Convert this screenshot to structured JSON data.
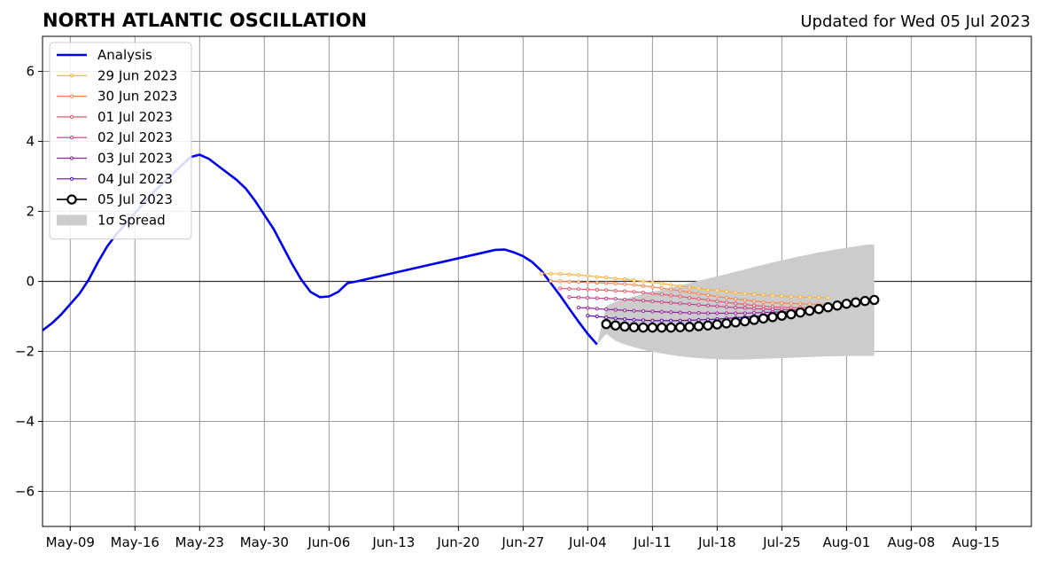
{
  "chart_data": {
    "type": "line",
    "title": "NORTH ATLANTIC OSCILLATION",
    "subtitle": "Updated for Wed 05 Jul 2023",
    "xlabel": "",
    "ylabel": "",
    "x_axis": {
      "range": [
        "2023-05-06",
        "2023-08-21"
      ],
      "ticks": [
        {
          "date": "2023-05-09",
          "label": "May-09"
        },
        {
          "date": "2023-05-16",
          "label": "May-16"
        },
        {
          "date": "2023-05-23",
          "label": "May-23"
        },
        {
          "date": "2023-05-30",
          "label": "May-30"
        },
        {
          "date": "2023-06-06",
          "label": "Jun-06"
        },
        {
          "date": "2023-06-13",
          "label": "Jun-13"
        },
        {
          "date": "2023-06-20",
          "label": "Jun-20"
        },
        {
          "date": "2023-06-27",
          "label": "Jun-27"
        },
        {
          "date": "2023-07-04",
          "label": "Jul-04"
        },
        {
          "date": "2023-07-11",
          "label": "Jul-11"
        },
        {
          "date": "2023-07-18",
          "label": "Jul-18"
        },
        {
          "date": "2023-07-25",
          "label": "Jul-25"
        },
        {
          "date": "2023-08-01",
          "label": "Aug-01"
        },
        {
          "date": "2023-08-08",
          "label": "Aug-08"
        },
        {
          "date": "2023-08-15",
          "label": "Aug-15"
        }
      ]
    },
    "y_axis": {
      "range": [
        -7,
        7
      ],
      "ticks": [
        {
          "value": -6,
          "label": "−6"
        },
        {
          "value": -4,
          "label": "−4"
        },
        {
          "value": -2,
          "label": "−2"
        },
        {
          "value": 0,
          "label": "0"
        },
        {
          "value": 2,
          "label": "2"
        },
        {
          "value": 4,
          "label": "4"
        },
        {
          "value": 6,
          "label": "6"
        }
      ]
    },
    "grid": true,
    "legend_position": "top-left",
    "analysis": {
      "name": "Analysis",
      "color": "#0000ee",
      "start": "2023-05-06",
      "values": [
        -1.4,
        -1.2,
        -0.95,
        -0.65,
        -0.35,
        0.05,
        0.55,
        1.0,
        1.35,
        1.65,
        1.95,
        2.25,
        2.55,
        2.8,
        3.05,
        3.3,
        3.55,
        3.62,
        3.5,
        3.3,
        3.1,
        2.9,
        2.65,
        2.3,
        1.9,
        1.5,
        1.0,
        0.5,
        0.05,
        -0.3,
        -0.45,
        -0.43,
        -0.3,
        -0.05,
        0.0,
        0.06,
        0.12,
        0.18,
        0.24,
        0.3,
        0.36,
        0.42,
        0.48,
        0.54,
        0.6,
        0.66,
        0.72,
        0.78,
        0.84,
        0.9,
        0.91,
        0.83,
        0.72,
        0.55,
        0.3,
        -0.05,
        -0.4,
        -0.78,
        -1.15,
        -1.5,
        -1.8
      ]
    },
    "series": [
      {
        "name": "29 Jun 2023",
        "color": "#fcb135",
        "start": "2023-06-29",
        "values": [
          0.22,
          0.22,
          0.21,
          0.2,
          0.18,
          0.16,
          0.13,
          0.11,
          0.08,
          0.06,
          0.03,
          0.0,
          -0.03,
          -0.06,
          -0.1,
          -0.13,
          -0.17,
          -0.2,
          -0.24,
          -0.26,
          -0.29,
          -0.32,
          -0.35,
          -0.37,
          -0.39,
          -0.41,
          -0.42,
          -0.44,
          -0.45,
          -0.46,
          -0.46,
          -0.47
        ]
      },
      {
        "name": "30 Jun 2023",
        "color": "#f4854d",
        "start": "2023-06-30",
        "values": [
          0.01,
          0.0,
          -0.01,
          -0.02,
          -0.03,
          -0.04,
          -0.05,
          -0.06,
          -0.08,
          -0.1,
          -0.13,
          -0.16,
          -0.19,
          -0.23,
          -0.27,
          -0.31,
          -0.35,
          -0.39,
          -0.43,
          -0.47,
          -0.5,
          -0.53,
          -0.56,
          -0.59,
          -0.61,
          -0.62,
          -0.63,
          -0.64,
          -0.65,
          -0.65,
          -0.65
        ]
      },
      {
        "name": "01 Jul 2023",
        "color": "#e05a6d",
        "start": "2023-07-01",
        "values": [
          -0.2,
          -0.21,
          -0.22,
          -0.23,
          -0.24,
          -0.25,
          -0.27,
          -0.28,
          -0.3,
          -0.32,
          -0.35,
          -0.37,
          -0.4,
          -0.43,
          -0.47,
          -0.5,
          -0.53,
          -0.57,
          -0.6,
          -0.63,
          -0.66,
          -0.69,
          -0.71,
          -0.73,
          -0.74,
          -0.75,
          -0.75,
          -0.75,
          -0.74,
          -0.73
        ]
      },
      {
        "name": "02 Jul 2023",
        "color": "#c13d86",
        "start": "2023-07-02",
        "values": [
          -0.45,
          -0.46,
          -0.47,
          -0.48,
          -0.49,
          -0.5,
          -0.52,
          -0.53,
          -0.55,
          -0.57,
          -0.59,
          -0.61,
          -0.63,
          -0.65,
          -0.67,
          -0.69,
          -0.71,
          -0.73,
          -0.75,
          -0.76,
          -0.78,
          -0.79,
          -0.8,
          -0.81,
          -0.81,
          -0.81,
          -0.8,
          -0.79,
          -0.78
        ]
      },
      {
        "name": "03 Jul 2023",
        "color": "#92229b",
        "start": "2023-07-03",
        "values": [
          -0.75,
          -0.76,
          -0.78,
          -0.8,
          -0.81,
          -0.83,
          -0.84,
          -0.85,
          -0.86,
          -0.87,
          -0.88,
          -0.89,
          -0.9,
          -0.9,
          -0.91,
          -0.91,
          -0.91,
          -0.91,
          -0.91,
          -0.9,
          -0.89,
          -0.88,
          -0.87,
          -0.86,
          -0.84,
          -0.82,
          -0.8,
          -0.78
        ]
      },
      {
        "name": "04 Jul 2023",
        "color": "#5b0ea6",
        "start": "2023-07-04",
        "values": [
          -0.98,
          -1.0,
          -1.03,
          -1.06,
          -1.08,
          -1.1,
          -1.11,
          -1.12,
          -1.12,
          -1.12,
          -1.12,
          -1.11,
          -1.1,
          -1.09,
          -1.08,
          -1.06,
          -1.04,
          -1.02,
          -1.0,
          -0.98,
          -0.95,
          -0.92,
          -0.89,
          -0.86,
          -0.83,
          -0.8,
          -0.77
        ]
      },
      {
        "name": "05 Jul 2023",
        "color": "#000000",
        "start": "2023-07-06",
        "values": [
          -1.22,
          -1.26,
          -1.29,
          -1.31,
          -1.32,
          -1.32,
          -1.32,
          -1.32,
          -1.31,
          -1.3,
          -1.28,
          -1.26,
          -1.23,
          -1.2,
          -1.17,
          -1.14,
          -1.1,
          -1.06,
          -1.02,
          -0.98,
          -0.94,
          -0.89,
          -0.84,
          -0.79,
          -0.74,
          -0.69,
          -0.64,
          -0.6,
          -0.56,
          -0.53
        ]
      }
    ],
    "spread": {
      "name": "1σ Spread",
      "color": "#cccccc",
      "start": "2023-07-05",
      "upper": [
        -1.8,
        -0.7,
        -0.58,
        -0.5,
        -0.43,
        -0.36,
        -0.3,
        -0.24,
        -0.18,
        -0.11,
        -0.05,
        0.02,
        0.08,
        0.15,
        0.21,
        0.28,
        0.34,
        0.41,
        0.47,
        0.54,
        0.6,
        0.66,
        0.72,
        0.77,
        0.83,
        0.87,
        0.92,
        0.96,
        1.0,
        1.04,
        1.06
      ],
      "lower": [
        -1.8,
        -1.5,
        -1.7,
        -1.8,
        -1.88,
        -1.95,
        -2.01,
        -2.06,
        -2.1,
        -2.14,
        -2.17,
        -2.19,
        -2.21,
        -2.22,
        -2.23,
        -2.23,
        -2.23,
        -2.22,
        -2.21,
        -2.2,
        -2.19,
        -2.18,
        -2.17,
        -2.16,
        -2.15,
        -2.14,
        -2.14,
        -2.13,
        -2.13,
        -2.13,
        -2.13
      ]
    }
  }
}
